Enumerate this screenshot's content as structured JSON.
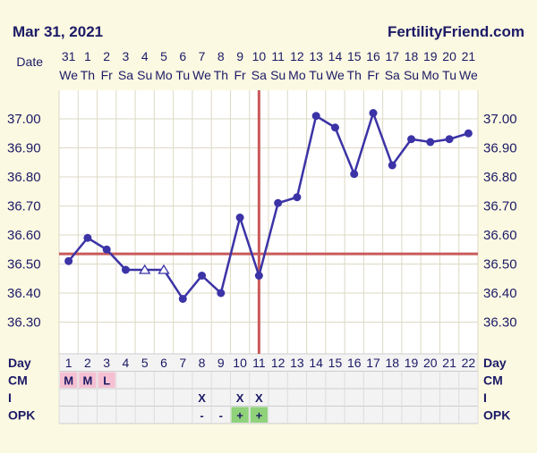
{
  "header": {
    "date": "Mar 31, 2021",
    "site": "FertilityFriend.com"
  },
  "colors": {
    "background": "#fbf9e1",
    "plot_bg": "#ffffff",
    "grid": "#ddd9c4",
    "line": "#3b33a6",
    "coverline": "#c85a5a",
    "text": "#1c1a66",
    "cm_fill": "#f4c0d2",
    "opk_positive_fill": "#8fd27a",
    "table_bg": "#f3f3f3"
  },
  "chart_data": {
    "type": "line",
    "row_labels": {
      "date": "Date",
      "day": "Day",
      "cm": "CM",
      "i": "I",
      "opk": "OPK"
    },
    "dates": [
      "31",
      "1",
      "2",
      "3",
      "4",
      "5",
      "6",
      "7",
      "8",
      "9",
      "10",
      "11",
      "12",
      "13",
      "14",
      "15",
      "16",
      "17",
      "18",
      "19",
      "20",
      "21"
    ],
    "weekdays": [
      "We",
      "Th",
      "Fr",
      "Sa",
      "Su",
      "Mo",
      "Tu",
      "We",
      "Th",
      "Fr",
      "Sa",
      "Su",
      "Mo",
      "Tu",
      "We",
      "Th",
      "Fr",
      "Sa",
      "Su",
      "Mo",
      "Tu",
      "We"
    ],
    "days": [
      "1",
      "2",
      "3",
      "4",
      "5",
      "6",
      "7",
      "8",
      "9",
      "10",
      "11",
      "12",
      "13",
      "14",
      "15",
      "16",
      "17",
      "18",
      "19",
      "20",
      "21",
      "22"
    ],
    "temperatures": [
      36.51,
      36.59,
      36.55,
      36.48,
      36.48,
      36.48,
      36.38,
      36.46,
      36.4,
      36.66,
      36.46,
      36.71,
      36.73,
      37.01,
      36.97,
      36.81,
      37.02,
      36.84,
      36.93,
      36.92,
      36.93,
      36.95
    ],
    "point_markers": [
      "circle",
      "circle",
      "circle",
      "circle",
      "triangle",
      "triangle",
      "circle",
      "circle",
      "circle",
      "circle",
      "circle",
      "circle",
      "circle",
      "circle",
      "circle",
      "circle",
      "circle",
      "circle",
      "circle",
      "circle",
      "circle",
      "circle"
    ],
    "y_ticks": [
      "37.00",
      "36.90",
      "36.80",
      "36.70",
      "36.60",
      "36.50",
      "36.40",
      "36.30"
    ],
    "ylim": [
      36.2,
      37.1
    ],
    "coverline": 36.535,
    "ovulation_day": "11",
    "cm": [
      "M",
      "M",
      "L",
      "",
      "",
      "",
      "",
      "",
      "",
      "",
      "",
      "",
      "",
      "",
      "",
      "",
      "",
      "",
      "",
      "",
      "",
      ""
    ],
    "intercourse": [
      "",
      "",
      "",
      "",
      "",
      "",
      "",
      "X",
      "",
      "X",
      "X",
      "",
      "",
      "",
      "",
      "",
      "",
      "",
      "",
      "",
      "",
      ""
    ],
    "opk": [
      "",
      "",
      "",
      "",
      "",
      "",
      "",
      "-",
      "-",
      "+",
      "+",
      "",
      "",
      "",
      "",
      "",
      "",
      "",
      "",
      "",
      "",
      ""
    ]
  }
}
